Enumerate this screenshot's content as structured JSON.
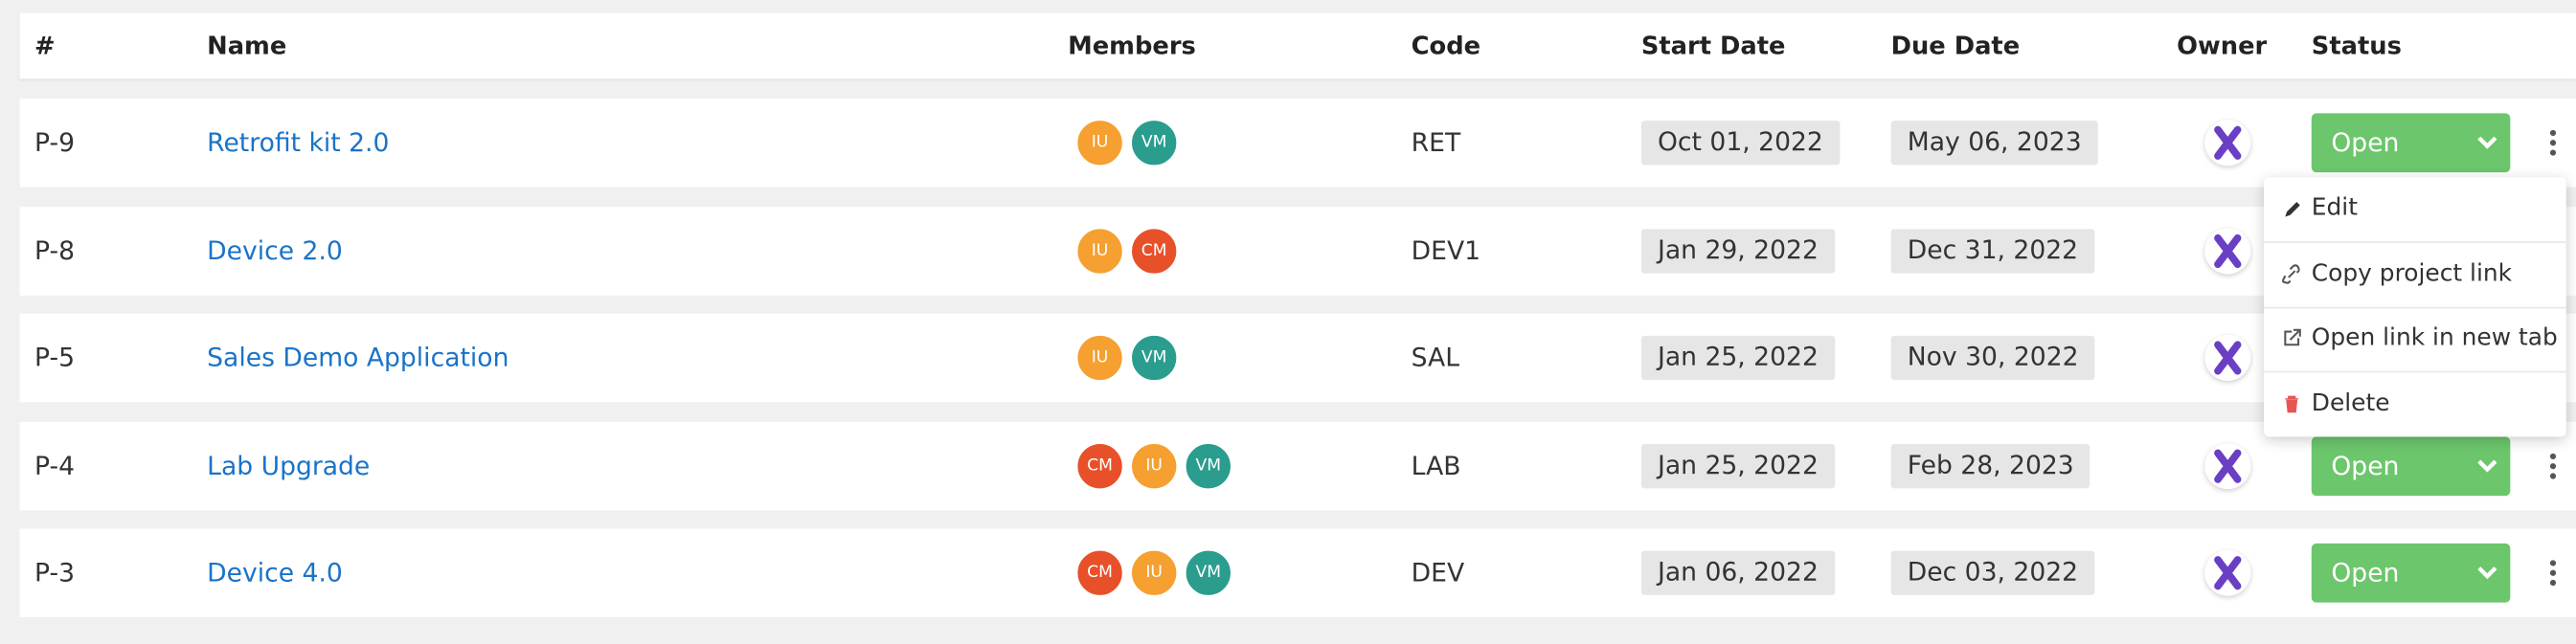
{
  "table": {
    "columns": [
      "#",
      "Name",
      "Members",
      "Code",
      "Start Date",
      "Due Date",
      "Owner",
      "Status"
    ],
    "rows": [
      {
        "id": "P-9",
        "name": "Retrofit kit 2.0",
        "members": [
          "IU",
          "VM"
        ],
        "code": "RET",
        "start": "Oct 01, 2022",
        "due": "May 06, 2023",
        "status": "Open"
      },
      {
        "id": "P-8",
        "name": "Device 2.0",
        "members": [
          "IU",
          "CM"
        ],
        "code": "DEV1",
        "start": "Jan 29, 2022",
        "due": "Dec 31, 2022"
      },
      {
        "id": "P-5",
        "name": "Sales Demo Application",
        "members": [
          "IU",
          "VM"
        ],
        "code": "SAL",
        "start": "Jan 25, 2022",
        "due": "Nov 30, 2022"
      },
      {
        "id": "P-4",
        "name": "Lab Upgrade",
        "members": [
          "CM",
          "IU",
          "VM"
        ],
        "code": "LAB",
        "start": "Jan 25, 2022",
        "due": "Feb 28, 2023",
        "status": "Open"
      },
      {
        "id": "P-3",
        "name": "Device 4.0",
        "members": [
          "CM",
          "IU",
          "VM"
        ],
        "code": "DEV",
        "start": "Jan 06, 2022",
        "due": "Dec 03, 2022",
        "status": "Open"
      }
    ]
  },
  "menu": {
    "items": [
      "Edit",
      "Copy project link",
      "Open link in new tab",
      "Delete"
    ]
  }
}
